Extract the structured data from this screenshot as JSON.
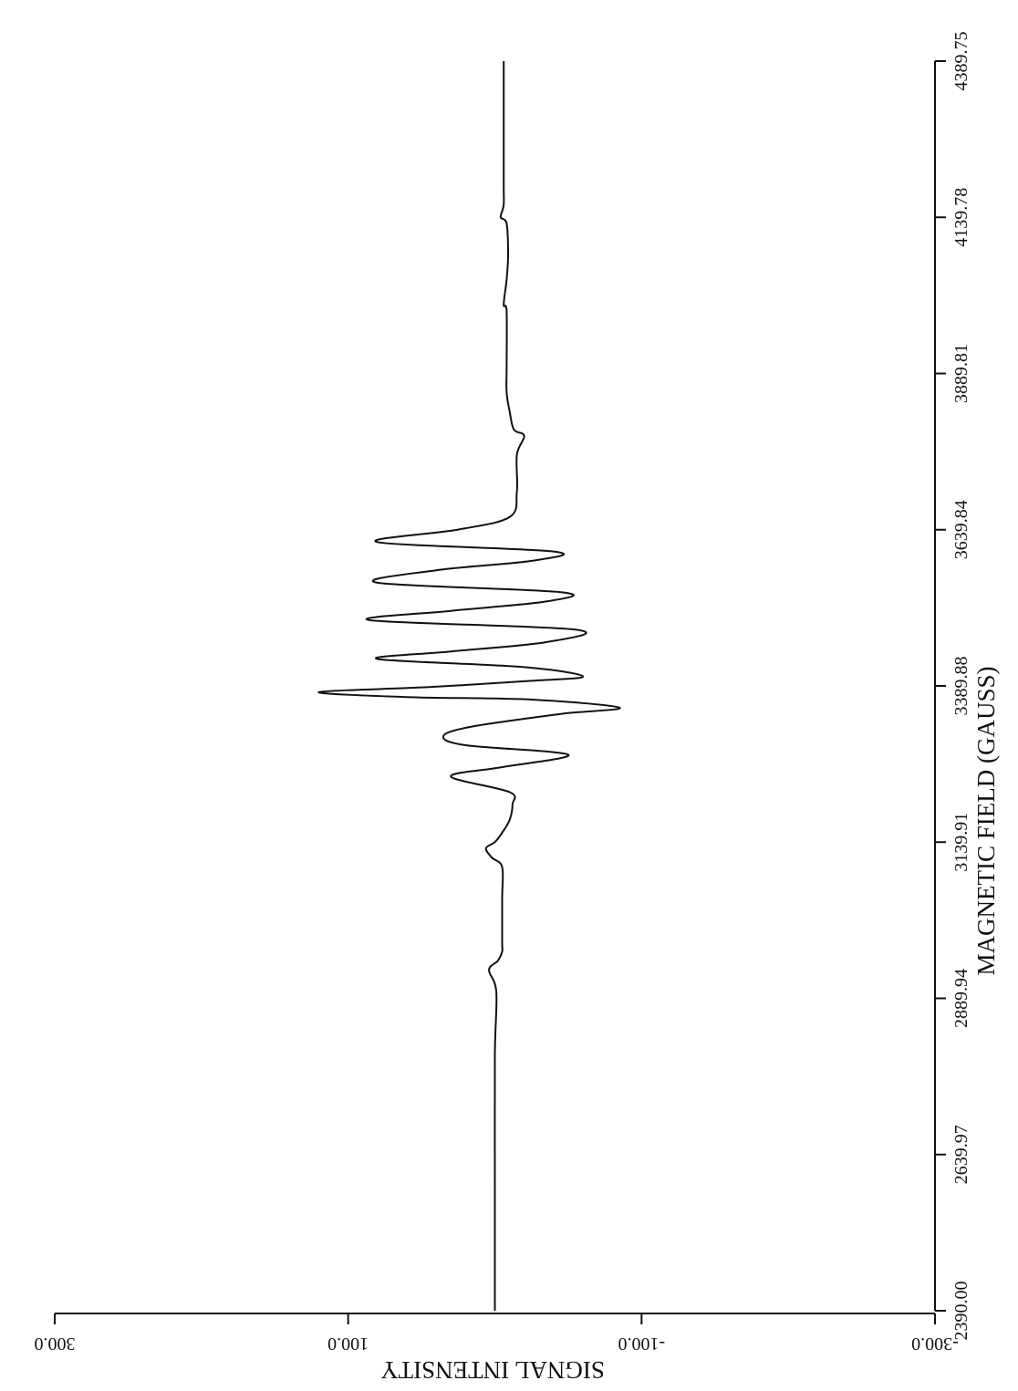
{
  "chart_data": {
    "type": "line",
    "title": "",
    "xlabel": "MAGNETIC FIELD (GAUSS)",
    "ylabel": "SIGNAL INTENSITY",
    "xlim": [
      2390.0,
      4389.75
    ],
    "ylim": [
      -300.0,
      300.0
    ],
    "x_ticks": [
      2390.0,
      2639.97,
      2889.94,
      3139.91,
      3389.88,
      3639.84,
      3889.81,
      4139.78,
      4389.75
    ],
    "x_tick_labels": [
      "2390.00",
      "2639.97",
      "2889.94",
      "3139.91",
      "3389.88",
      "3639.84",
      "3889.81",
      "4139.78",
      "4389.75"
    ],
    "y_ticks": [
      300.0,
      100.0,
      -100.0,
      -300.0
    ],
    "y_tick_labels": [
      "300.0",
      "100.0",
      "-100.0",
      "-300.0"
    ],
    "grid": false,
    "series": [
      {
        "x": [
          2390,
          2600,
          2800,
          2900,
          2935,
          2950,
          2965,
          2980,
          3050,
          3100,
          3115,
          3130,
          3140,
          3155,
          3175,
          3200,
          3220,
          3245,
          3260,
          3280,
          3295,
          3310,
          3325,
          3345,
          3355,
          3368,
          3372,
          3380,
          3388,
          3398,
          3405,
          3420,
          3433,
          3445,
          3460,
          3480,
          3495,
          3510,
          3525,
          3540,
          3555,
          3575,
          3590,
          3605,
          3620,
          3640,
          3660,
          3700,
          3760,
          3790,
          3800,
          3830,
          3860,
          3900,
          3990,
          4000,
          4040,
          4080,
          4130,
          4140,
          4160,
          4200,
          4389.75
        ],
        "y": [
          0,
          0,
          0,
          -1,
          4,
          -2,
          -5,
          -5,
          -5,
          -5,
          2,
          6,
          0,
          -5,
          -10,
          -12,
          -10,
          30,
          -5,
          -50,
          20,
          35,
          15,
          -45,
          -85,
          -25,
          60,
          120,
          45,
          -25,
          -60,
          -20,
          80,
          30,
          -35,
          -55,
          85,
          30,
          -35,
          -45,
          80,
          40,
          -25,
          -40,
          80,
          25,
          -10,
          -15,
          -15,
          -20,
          -13,
          -10,
          -8,
          -8,
          -8,
          -6,
          -8,
          -9,
          -8,
          -4,
          -6,
          -6,
          -6
        ]
      }
    ]
  }
}
